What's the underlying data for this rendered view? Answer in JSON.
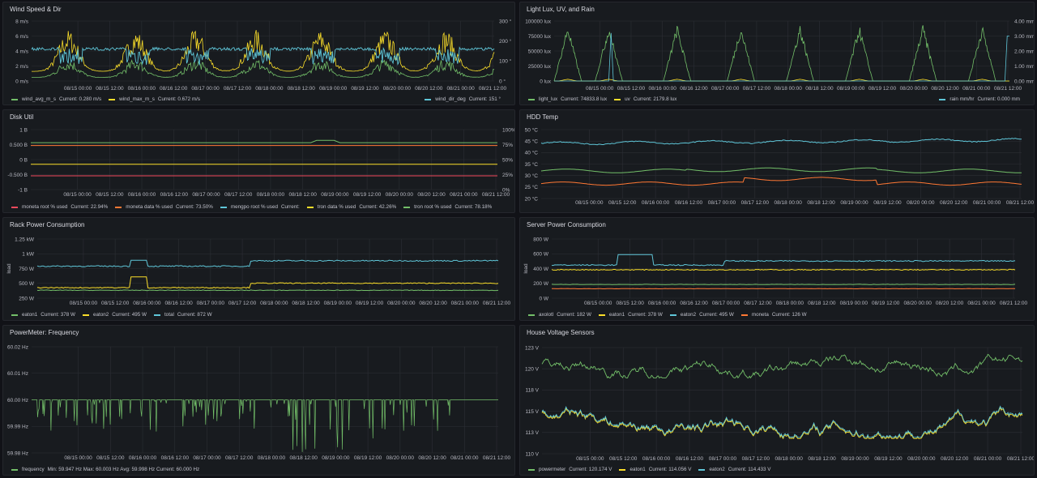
{
  "colors": {
    "green": "#73bf69",
    "yellow": "#fade2a",
    "blue": "#5fc6d8",
    "red": "#f2495c",
    "orange": "#ff7834",
    "grid": "#2c2f35"
  },
  "dates": [
    "08/15 00:00",
    "08/15 12:00",
    "08/16 00:00",
    "08/16 12:00",
    "08/17 00:00",
    "08/17 12:00",
    "08/18 00:00",
    "08/18 12:00",
    "08/19 00:00",
    "08/19 12:00",
    "08/20 00:00",
    "08/20 12:00",
    "08/21 00:00",
    "08/21 12:00"
  ],
  "panels": {
    "wind": {
      "title": "Wind Speed & Dir",
      "y_ticks": [
        "8 m/s",
        "6 m/s",
        "4 m/s",
        "2 m/s",
        "0 m/s"
      ],
      "y2_ticks": [
        "300 °",
        "200 °",
        "100 °",
        "0 °"
      ],
      "legend": [
        {
          "label": "wind_avg_m_s",
          "current": "Current: 0.280 m/s",
          "color": "green"
        },
        {
          "label": "wind_max_m_s",
          "current": "Current: 0.672 m/s",
          "color": "yellow"
        }
      ],
      "legend_right": [
        {
          "label": "wind_dir_deg",
          "current": "Current: 151 °",
          "color": "blue"
        }
      ]
    },
    "light": {
      "title": "Light Lux, UV, and Rain",
      "y_ticks": [
        "100000 lux",
        "75000 lux",
        "50000 lux",
        "25000 lux",
        "0 lux"
      ],
      "y2_ticks": [
        "4.00 mm",
        "3.00 mm",
        "2.00 mm",
        "1.00 mm",
        "0.00 mm"
      ],
      "legend": [
        {
          "label": "light_lux",
          "current": "Current: 74833.8 lux",
          "color": "green"
        },
        {
          "label": "uv",
          "current": "Current: 2179.8 lux",
          "color": "yellow"
        }
      ],
      "legend_right": [
        {
          "label": "rain mm/hr",
          "current": "Current: 0.000 mm",
          "color": "blue"
        }
      ]
    },
    "disk": {
      "title": "Disk Util",
      "y_ticks": [
        "1 B",
        "0.500 B",
        "0 B",
        "-0.500 B",
        "-1 B"
      ],
      "y2_ticks": [
        "100%",
        "75%",
        "50%",
        "25%",
        "0%"
      ],
      "legend": [
        {
          "label": "moneta root % used",
          "current": "Current: 22.94%",
          "color": "red"
        },
        {
          "label": "moneta data % used",
          "current": "Current: 73.50%",
          "color": "orange"
        },
        {
          "label": "mengpo root % used",
          "current": "Current:",
          "color": "blue"
        },
        {
          "label": "tron data % used",
          "current": "Current: 42.26%",
          "color": "yellow"
        },
        {
          "label": "tron root % used",
          "current": "Current: 78.18%",
          "color": "green"
        }
      ]
    },
    "hdd": {
      "title": "HDD Temp",
      "y_ticks": [
        "50 °C",
        "45 °C",
        "40 °C",
        "35 °C",
        "30 °C",
        "25 °C",
        "20 °C"
      ]
    },
    "rack": {
      "title": "Rack Power Consumption",
      "y_ticks": [
        "1.25 kW",
        "1 kW",
        "750 W",
        "500 W",
        "250 W"
      ],
      "y_axis_label": "load",
      "legend": [
        {
          "label": "eaton1",
          "current": "Current: 378 W",
          "color": "green"
        },
        {
          "label": "eaton2",
          "current": "Current: 495 W",
          "color": "yellow"
        },
        {
          "label": "total",
          "current": "Current: 872 W",
          "color": "blue"
        }
      ]
    },
    "server": {
      "title": "Server Power Consumption",
      "y_ticks": [
        "800 W",
        "600 W",
        "400 W",
        "200 W",
        "0 W"
      ],
      "y_axis_label": "load",
      "legend": [
        {
          "label": "axolotl",
          "current": "Current: 182 W",
          "color": "green"
        },
        {
          "label": "eaton1",
          "current": "Current: 378 W",
          "color": "yellow"
        },
        {
          "label": "eaton2",
          "current": "Current: 495 W",
          "color": "blue"
        },
        {
          "label": "moneta",
          "current": "Current: 126 W",
          "color": "orange"
        }
      ]
    },
    "freq": {
      "title": "PowerMeter: Frequency",
      "y_ticks": [
        "60.02 Hz",
        "60.01 Hz",
        "60.00 Hz",
        "59.99 Hz",
        "59.98 Hz"
      ],
      "legend": [
        {
          "label": "frequency",
          "current": "Min: 59.947 Hz  Max: 60.003 Hz  Avg: 59.998 Hz  Current: 60.000 Hz",
          "color": "green"
        }
      ]
    },
    "voltage": {
      "title": "House Voltage Sensors",
      "y_ticks": [
        "123 V",
        "120 V",
        "118 V",
        "115 V",
        "113 V",
        "110 V"
      ],
      "legend": [
        {
          "label": "powermeter",
          "current": "Current: 120.174 V",
          "color": "green"
        },
        {
          "label": "eaton1",
          "current": "Current: 114.056 V",
          "color": "yellow"
        },
        {
          "label": "eaton2",
          "current": "Current: 114.433 V",
          "color": "blue"
        }
      ]
    }
  }
}
